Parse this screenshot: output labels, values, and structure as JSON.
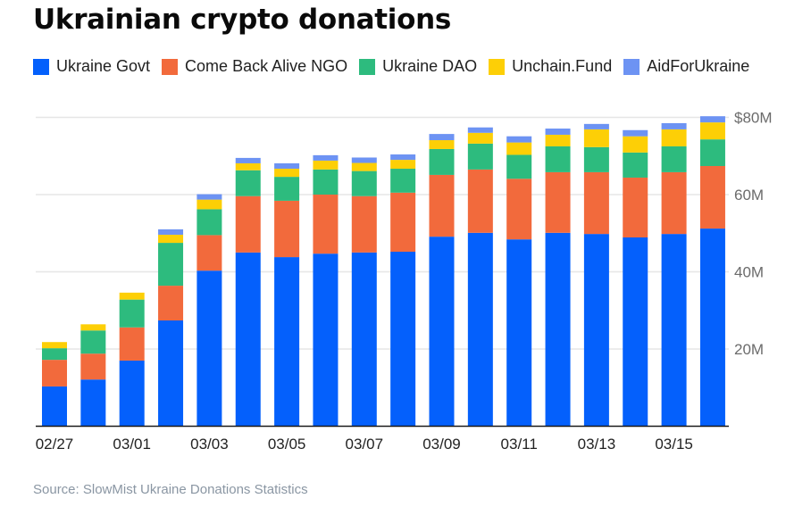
{
  "title": "Ukrainian crypto donations",
  "source": "Source: SlowMist Ukraine Donations Statistics",
  "legend": [
    {
      "name": "Ukraine Govt",
      "color": "#0460fc"
    },
    {
      "name": "Come Back Alive NGO",
      "color": "#f26a3c"
    },
    {
      "name": "Ukraine DAO",
      "color": "#2dbb7e"
    },
    {
      "name": "Unchain.Fund",
      "color": "#fdcf06"
    },
    {
      "name": "AidForUkraine",
      "color": "#6d93f3"
    }
  ],
  "chart_data": {
    "type": "bar",
    "stacked": true,
    "title": "Ukrainian crypto donations",
    "xlabel": "",
    "ylabel": "",
    "ylim": [
      0,
      80
    ],
    "y_unit": "$M",
    "y_ticks": [
      20,
      40,
      60,
      80
    ],
    "y_tick_labels": [
      "20M",
      "40M",
      "60M",
      "$80M"
    ],
    "y_axis_position": "right",
    "grid": true,
    "legend_position": "top-left",
    "categories": [
      "02/27",
      "02/28",
      "03/01",
      "03/02",
      "03/03",
      "03/04",
      "03/05",
      "03/06",
      "03/07",
      "03/08",
      "03/09",
      "03/10",
      "03/11",
      "03/12",
      "03/13",
      "03/14",
      "03/15",
      "03/16"
    ],
    "x_tick_labels": [
      "02/27",
      "03/01",
      "03/03",
      "03/05",
      "03/07",
      "03/09",
      "03/11",
      "03/13",
      "03/15"
    ],
    "series": [
      {
        "name": "Ukraine Govt",
        "color": "#0460fc",
        "values": [
          10.3,
          12.1,
          17.0,
          27.4,
          40.3,
          45.0,
          43.8,
          44.7,
          45.0,
          45.2,
          49.1,
          50.1,
          48.4,
          50.1,
          49.8,
          48.9,
          49.8,
          51.2
        ]
      },
      {
        "name": "Come Back Alive NGO",
        "color": "#f26a3c",
        "values": [
          6.9,
          6.7,
          8.6,
          9.0,
          9.2,
          14.6,
          14.6,
          15.3,
          14.6,
          15.3,
          16.0,
          16.4,
          15.7,
          15.7,
          16.0,
          15.5,
          16.0,
          16.2
        ]
      },
      {
        "name": "Ukraine DAO",
        "color": "#2dbb7e",
        "values": [
          3.0,
          6.0,
          7.2,
          11.1,
          6.7,
          6.7,
          6.2,
          6.5,
          6.5,
          6.2,
          6.7,
          6.7,
          6.2,
          6.7,
          6.5,
          6.5,
          6.7,
          6.9
        ]
      },
      {
        "name": "Unchain.Fund",
        "color": "#fdcf06",
        "values": [
          1.6,
          1.6,
          1.8,
          2.1,
          2.5,
          1.8,
          2.1,
          2.3,
          2.1,
          2.3,
          2.3,
          2.8,
          3.2,
          3.0,
          4.6,
          4.2,
          4.4,
          4.4
        ]
      },
      {
        "name": "AidForUkraine",
        "color": "#6d93f3",
        "values": [
          0,
          0,
          0,
          1.4,
          1.4,
          1.4,
          1.4,
          1.4,
          1.4,
          1.4,
          1.6,
          1.4,
          1.6,
          1.6,
          1.4,
          1.6,
          1.6,
          1.6
        ]
      }
    ]
  }
}
